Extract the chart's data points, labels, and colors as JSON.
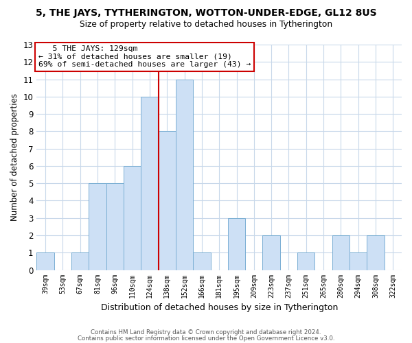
{
  "title": "5, THE JAYS, TYTHERINGTON, WOTTON-UNDER-EDGE, GL12 8US",
  "subtitle": "Size of property relative to detached houses in Tytherington",
  "xlabel": "Distribution of detached houses by size in Tytherington",
  "ylabel": "Number of detached properties",
  "bin_labels": [
    "39sqm",
    "53sqm",
    "67sqm",
    "81sqm",
    "96sqm",
    "110sqm",
    "124sqm",
    "138sqm",
    "152sqm",
    "166sqm",
    "181sqm",
    "195sqm",
    "209sqm",
    "223sqm",
    "237sqm",
    "251sqm",
    "265sqm",
    "280sqm",
    "294sqm",
    "308sqm",
    "322sqm"
  ],
  "bar_heights": [
    1,
    0,
    1,
    5,
    5,
    6,
    10,
    8,
    11,
    1,
    0,
    3,
    0,
    2,
    0,
    1,
    0,
    2,
    1,
    2,
    0
  ],
  "bar_color": "#cde0f5",
  "bar_edge_color": "#7bafd4",
  "vline_x_idx": 6.5,
  "vline_color": "#cc0000",
  "annotation_title": "5 THE JAYS: 129sqm",
  "annotation_line1": "← 31% of detached houses are smaller (19)",
  "annotation_line2": "69% of semi-detached houses are larger (43) →",
  "annotation_box_color": "#ffffff",
  "annotation_box_edge": "#cc0000",
  "ylim": [
    0,
    13
  ],
  "yticks": [
    0,
    1,
    2,
    3,
    4,
    5,
    6,
    7,
    8,
    9,
    10,
    11,
    12,
    13
  ],
  "footer1": "Contains HM Land Registry data © Crown copyright and database right 2024.",
  "footer2": "Contains public sector information licensed under the Open Government Licence v3.0.",
  "bg_color": "#ffffff",
  "grid_color": "#c8d8ea"
}
